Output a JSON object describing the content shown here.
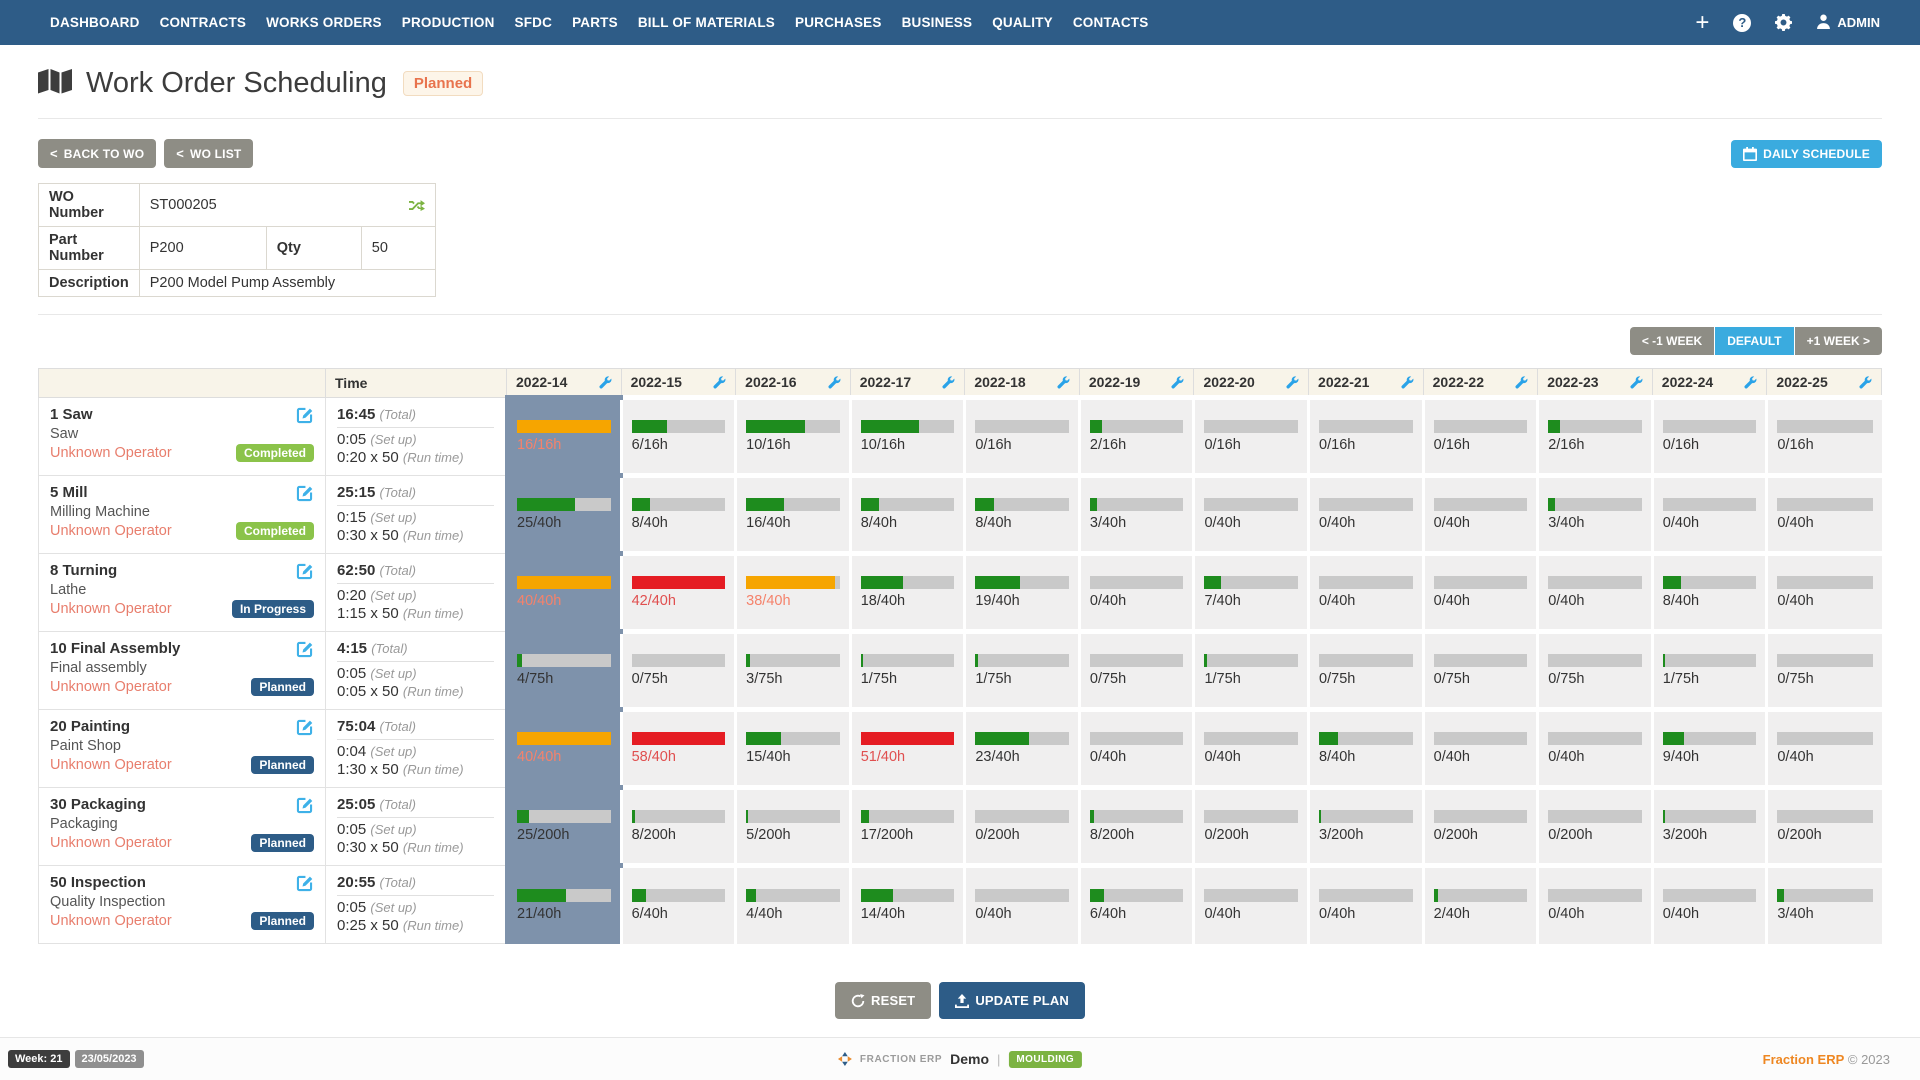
{
  "nav": {
    "items": [
      "DASHBOARD",
      "CONTRACTS",
      "WORKS ORDERS",
      "PRODUCTION",
      "SFDC",
      "PARTS",
      "BILL OF MATERIALS",
      "PURCHASES",
      "BUSINESS",
      "QUALITY",
      "CONTACTS"
    ],
    "plus": "+",
    "help": "?",
    "admin_label": "ADMIN"
  },
  "page": {
    "title": "Work Order Scheduling",
    "status": "Planned"
  },
  "toolbar": {
    "chevron": "<",
    "back_to_wo": "BACK TO WO",
    "wo_list": "WO LIST",
    "daily_schedule": "DAILY SCHEDULE"
  },
  "wo_info": {
    "wo_number_label": "WO Number",
    "wo_number": "ST000205",
    "part_number_label": "Part Number",
    "part_number": "P200",
    "qty_label": "Qty",
    "qty": "50",
    "description_label": "Description",
    "description": "P200 Model Pump Assembly"
  },
  "week_nav": {
    "prev": "< -1 WEEK",
    "current": "DEFAULT",
    "next": "+1 WEEK >"
  },
  "schedule": {
    "time_header": "Time",
    "weeks": [
      "2022-14",
      "2022-15",
      "2022-16",
      "2022-17",
      "2022-18",
      "2022-19",
      "2022-20",
      "2022-21",
      "2022-22",
      "2022-23",
      "2022-24",
      "2022-25"
    ],
    "highlight_week": "2022-14",
    "time_labels": {
      "total": "(Total)",
      "setup": "(Set up)",
      "run": "(Run time)"
    },
    "rows": [
      {
        "op": "1 Saw",
        "resource": "Saw",
        "operator": "Unknown Operator",
        "status": "Completed",
        "status_style": "green",
        "total": "16:45",
        "setup": "0:05",
        "run": "0:20 x 50",
        "cells": [
          "16/16h",
          "6/16h",
          "10/16h",
          "10/16h",
          "0/16h",
          "2/16h",
          "0/16h",
          "0/16h",
          "0/16h",
          "2/16h",
          "0/16h",
          "0/16h"
        ],
        "cell_colors": [
          "orange",
          "green",
          "green",
          "green",
          "green",
          "green",
          "green",
          "green",
          "green",
          "green",
          "green",
          "green"
        ]
      },
      {
        "op": "5 Mill",
        "resource": "Milling Machine",
        "operator": "Unknown Operator",
        "status": "Completed",
        "status_style": "green",
        "total": "25:15",
        "setup": "0:15",
        "run": "0:30 x 50",
        "cells": [
          "25/40h",
          "8/40h",
          "16/40h",
          "8/40h",
          "8/40h",
          "3/40h",
          "0/40h",
          "0/40h",
          "0/40h",
          "3/40h",
          "0/40h",
          "0/40h"
        ],
        "cell_colors": [
          "green",
          "green",
          "green",
          "green",
          "green",
          "green",
          "green",
          "green",
          "green",
          "green",
          "green",
          "green"
        ]
      },
      {
        "op": "8 Turning",
        "resource": "Lathe",
        "operator": "Unknown Operator",
        "status": "In Progress",
        "status_style": "navy",
        "total": "62:50",
        "setup": "0:20",
        "run": "1:15 x 50",
        "cells": [
          "40/40h",
          "42/40h",
          "38/40h",
          "18/40h",
          "19/40h",
          "0/40h",
          "7/40h",
          "0/40h",
          "0/40h",
          "0/40h",
          "8/40h",
          "0/40h"
        ],
        "cell_colors": [
          "orange",
          "red",
          "orange",
          "green",
          "green",
          "green",
          "green",
          "green",
          "green",
          "green",
          "green",
          "green"
        ]
      },
      {
        "op": "10 Final Assembly",
        "resource": "Final assembly",
        "operator": "Unknown Operator",
        "status": "Planned",
        "status_style": "navy",
        "total": "4:15",
        "setup": "0:05",
        "run": "0:05 x 50",
        "cells": [
          "4/75h",
          "0/75h",
          "3/75h",
          "1/75h",
          "1/75h",
          "0/75h",
          "1/75h",
          "0/75h",
          "0/75h",
          "0/75h",
          "1/75h",
          "0/75h"
        ],
        "cell_colors": [
          "green",
          "green",
          "green",
          "green",
          "green",
          "green",
          "green",
          "green",
          "green",
          "green",
          "green",
          "green"
        ]
      },
      {
        "op": "20 Painting",
        "resource": "Paint Shop",
        "operator": "Unknown Operator",
        "status": "Planned",
        "status_style": "navy",
        "total": "75:04",
        "setup": "0:04",
        "run": "1:30 x 50",
        "cells": [
          "40/40h",
          "58/40h",
          "15/40h",
          "51/40h",
          "23/40h",
          "0/40h",
          "0/40h",
          "8/40h",
          "0/40h",
          "0/40h",
          "9/40h",
          "0/40h"
        ],
        "cell_colors": [
          "orange",
          "red",
          "green",
          "red",
          "green",
          "green",
          "green",
          "green",
          "green",
          "green",
          "green",
          "green"
        ]
      },
      {
        "op": "30 Packaging",
        "resource": "Packaging",
        "operator": "Unknown Operator",
        "status": "Planned",
        "status_style": "navy",
        "total": "25:05",
        "setup": "0:05",
        "run": "0:30 x 50",
        "cells": [
          "25/200h",
          "8/200h",
          "5/200h",
          "17/200h",
          "0/200h",
          "8/200h",
          "0/200h",
          "3/200h",
          "0/200h",
          "0/200h",
          "3/200h",
          "0/200h"
        ],
        "cell_colors": [
          "green",
          "green",
          "green",
          "green",
          "green",
          "green",
          "green",
          "green",
          "green",
          "green",
          "green",
          "green"
        ]
      },
      {
        "op": "50 Inspection",
        "resource": "Quality Inspection",
        "operator": "Unknown Operator",
        "status": "Planned",
        "status_style": "navy",
        "total": "20:55",
        "setup": "0:05",
        "run": "0:25 x 50",
        "cells": [
          "21/40h",
          "6/40h",
          "4/40h",
          "14/40h",
          "0/40h",
          "6/40h",
          "0/40h",
          "0/40h",
          "2/40h",
          "0/40h",
          "0/40h",
          "3/40h"
        ],
        "cell_colors": [
          "green",
          "green",
          "green",
          "green",
          "green",
          "green",
          "green",
          "green",
          "green",
          "green",
          "green",
          "green"
        ]
      }
    ]
  },
  "actions": {
    "reset": "RESET",
    "update_plan": "UPDATE PLAN"
  },
  "footer": {
    "week_badge": "Week: 21",
    "date_badge": "23/05/2023",
    "brand": "FRACTION ERP",
    "mode": "Demo",
    "separator": "|",
    "site": "MOULDING",
    "copyright_brand": "Fraction ERP",
    "copyright": "© 2023"
  },
  "colors": {
    "nav_blue": "#2e5c87",
    "accent_blue": "#3aabdf",
    "bar_green": "#1e8c1e",
    "bar_orange": "#f6a500",
    "bar_red": "#e51c23",
    "highlight_column": "#7e92ab",
    "badge_green": "#8bc34a",
    "badge_navy": "#2d5c87",
    "link_salmon": "#e87e6d",
    "brand_orange": "#ee8722"
  }
}
